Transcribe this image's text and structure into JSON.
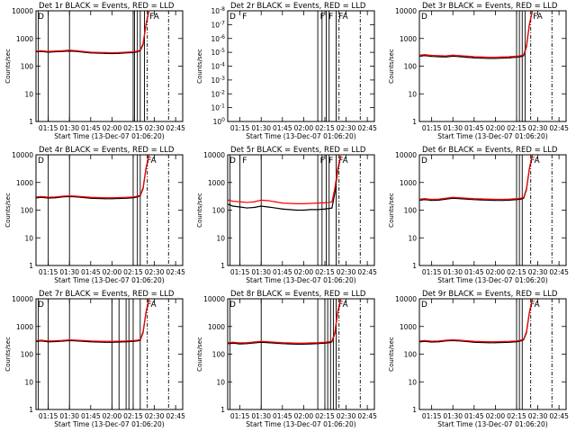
{
  "chart_data": [
    {
      "type": "line",
      "title": "Det 1r BLACK = Events, RED = LLD",
      "xlabel": "Start Time (13-Dec-07 01:06:20)",
      "ylabel": "Counts/sec",
      "yscale": "log",
      "ylim": [
        1,
        10000
      ],
      "yticks": [
        "1",
        "10",
        "100",
        "1000",
        "10000"
      ],
      "xticks": [
        "01:15",
        "01:30",
        "01:45",
        "02:00",
        "02:15",
        "02:30",
        "02:45"
      ],
      "xlim": [
        "01:06:20",
        "02:50"
      ],
      "x": [
        "01:07",
        "01:10",
        "01:15",
        "01:20",
        "01:25",
        "01:30",
        "01:35",
        "01:40",
        "01:45",
        "01:50",
        "01:55",
        "02:00",
        "02:05",
        "02:10",
        "02:15",
        "02:18",
        "02:20",
        "02:22",
        "02:24",
        "02:26"
      ],
      "series": [
        {
          "name": "Events",
          "color": "#000000",
          "values": [
            330,
            340,
            320,
            330,
            340,
            350,
            340,
            320,
            300,
            295,
            290,
            285,
            290,
            300,
            310,
            330,
            360,
            600,
            3000,
            9000
          ]
        },
        {
          "name": "LLD",
          "color": "#ff0000",
          "values": [
            350,
            360,
            340,
            350,
            360,
            380,
            360,
            340,
            320,
            315,
            310,
            305,
            310,
            320,
            330,
            350,
            380,
            650,
            3200,
            9500
          ]
        }
      ],
      "vlines": [
        "01:08",
        "01:15",
        "01:30",
        "02:15",
        "02:16",
        "02:18",
        "02:20",
        "02:23"
      ],
      "dashlines": [
        "02:25",
        "02:40"
      ],
      "flags": [
        {
          "x": "01:07",
          "text": "D"
        },
        {
          "x": "02:26",
          "text": "FA"
        }
      ]
    },
    {
      "type": "line",
      "title": "Det 2r BLACK = Events, RED = LLD",
      "xlabel": "Start Time (13-Dec-07 01:06:20)",
      "ylabel": "Counts/sec",
      "yscale": "log",
      "ylim": [
        1,
        1e-08
      ],
      "yticks": [
        "10^0",
        "10^-1",
        "10^-2",
        "10^-3",
        "10^-4",
        "10^-5",
        "10^-6",
        "10^-7",
        "10^-8"
      ],
      "xticks": [
        "01:15",
        "01:30",
        "01:45",
        "02:00",
        "02:15",
        "02:30",
        "02:45"
      ],
      "xlim": [
        "01:06:20",
        "02:50"
      ],
      "x": [],
      "series": [],
      "vlines": [
        "02:10",
        "02:13",
        "02:16",
        "02:18",
        "02:23"
      ],
      "dashlines": [
        "02:25",
        "02:40"
      ],
      "flags": [
        {
          "x": "01:07",
          "text": "D"
        },
        {
          "x": "01:16",
          "text": "F"
        },
        {
          "x": "02:11",
          "text": "F"
        },
        {
          "x": "02:17",
          "text": "F"
        },
        {
          "x": "02:24",
          "text": "FA"
        }
      ]
    },
    {
      "type": "line",
      "title": "Det 3r BLACK = Events, RED = LLD",
      "xlabel": "Start Time (13-Dec-07 01:06:20)",
      "ylabel": "Counts/sec",
      "yscale": "log",
      "ylim": [
        1,
        10000
      ],
      "yticks": [
        "1",
        "10",
        "100",
        "1000",
        "10000"
      ],
      "xticks": [
        "01:15",
        "01:30",
        "01:45",
        "02:00",
        "02:15",
        "02:30",
        "02:45"
      ],
      "xlim": [
        "01:06:20",
        "02:50"
      ],
      "x": [
        "01:07",
        "01:10",
        "01:15",
        "01:20",
        "01:25",
        "01:30",
        "01:35",
        "01:40",
        "01:45",
        "01:50",
        "01:55",
        "02:00",
        "02:05",
        "02:10",
        "02:15",
        "02:18",
        "02:20",
        "02:22",
        "02:24",
        "02:26"
      ],
      "series": [
        {
          "name": "Events",
          "color": "#000000",
          "values": [
            230,
            240,
            225,
            220,
            215,
            230,
            220,
            210,
            200,
            195,
            190,
            190,
            195,
            200,
            210,
            220,
            240,
            500,
            3000,
            9000
          ]
        },
        {
          "name": "LLD",
          "color": "#ff0000",
          "values": [
            250,
            260,
            245,
            240,
            235,
            250,
            240,
            230,
            220,
            215,
            210,
            210,
            215,
            220,
            230,
            240,
            260,
            550,
            3200,
            9500
          ]
        }
      ],
      "vlines": [
        "02:15",
        "02:17",
        "02:19",
        "02:21"
      ],
      "dashlines": [
        "02:25",
        "02:40"
      ],
      "flags": [
        {
          "x": "01:07",
          "text": "D"
        },
        {
          "x": "02:26",
          "text": "FA"
        }
      ]
    },
    {
      "type": "line",
      "title": "Det 4r BLACK = Events, RED = LLD",
      "xlabel": "Start Time (13-Dec-07 01:06:20)",
      "ylabel": "Counts/sec",
      "yscale": "log",
      "ylim": [
        1,
        10000
      ],
      "yticks": [
        "1",
        "10",
        "100",
        "1000",
        "10000"
      ],
      "xticks": [
        "01:15",
        "01:30",
        "01:45",
        "02:00",
        "02:15",
        "02:30",
        "02:45"
      ],
      "xlim": [
        "01:06:20",
        "02:50"
      ],
      "x": [
        "01:07",
        "01:10",
        "01:15",
        "01:20",
        "01:25",
        "01:30",
        "01:35",
        "01:40",
        "01:45",
        "01:50",
        "01:55",
        "02:00",
        "02:05",
        "02:10",
        "02:15",
        "02:18",
        "02:20",
        "02:22",
        "02:24",
        "02:26"
      ],
      "series": [
        {
          "name": "Events",
          "color": "#000000",
          "values": [
            280,
            290,
            275,
            280,
            300,
            310,
            300,
            285,
            270,
            265,
            260,
            260,
            265,
            270,
            280,
            300,
            330,
            600,
            3000,
            9000
          ]
        },
        {
          "name": "LLD",
          "color": "#ff0000",
          "values": [
            300,
            310,
            295,
            300,
            320,
            330,
            320,
            305,
            290,
            285,
            280,
            280,
            285,
            290,
            300,
            320,
            350,
            650,
            3200,
            9500
          ]
        }
      ],
      "vlines": [
        "01:15",
        "01:30",
        "02:15",
        "02:18",
        "02:20"
      ],
      "dashlines": [
        "02:25",
        "02:40"
      ],
      "flags": [
        {
          "x": "01:07",
          "text": "D"
        },
        {
          "x": "02:24",
          "text": "FA"
        }
      ]
    },
    {
      "type": "line",
      "title": "Det 5r BLACK = Events, RED = LLD",
      "xlabel": "Start Time (13-Dec-07 01:06:20)",
      "ylabel": "Counts/sec",
      "yscale": "log",
      "ylim": [
        1,
        10000
      ],
      "yticks": [
        "1",
        "10",
        "100",
        "1000",
        "10000"
      ],
      "xticks": [
        "01:15",
        "01:30",
        "01:45",
        "02:00",
        "02:15",
        "02:30",
        "02:45"
      ],
      "xlim": [
        "01:06:20",
        "02:50"
      ],
      "x": [
        "01:07",
        "01:10",
        "01:15",
        "01:20",
        "01:25",
        "01:30",
        "01:35",
        "01:40",
        "01:45",
        "01:50",
        "01:55",
        "02:00",
        "02:05",
        "02:10",
        "02:15",
        "02:18",
        "02:20",
        "02:22",
        "02:24",
        "02:26"
      ],
      "series": [
        {
          "name": "Events",
          "color": "#000000",
          "values": [
            160,
            140,
            130,
            120,
            125,
            140,
            130,
            120,
            110,
            105,
            100,
            100,
            105,
            105,
            110,
            115,
            120,
            400,
            2500,
            8000
          ]
        },
        {
          "name": "LLD",
          "color": "#ff0000",
          "values": [
            230,
            210,
            200,
            190,
            200,
            230,
            220,
            200,
            180,
            175,
            170,
            170,
            175,
            180,
            185,
            190,
            200,
            600,
            3000,
            9000
          ]
        }
      ],
      "vlines": [
        "01:08",
        "01:15",
        "01:30",
        "02:10",
        "02:13",
        "02:16",
        "02:18",
        "02:23"
      ],
      "dashlines": [
        "02:25",
        "02:40"
      ],
      "flags": [
        {
          "x": "01:07",
          "text": "D"
        },
        {
          "x": "01:16",
          "text": "F"
        },
        {
          "x": "02:11",
          "text": "F"
        },
        {
          "x": "02:17",
          "text": "F"
        },
        {
          "x": "02:24",
          "text": "FA"
        }
      ]
    },
    {
      "type": "line",
      "title": "Det 6r BLACK = Events, RED = LLD",
      "xlabel": "Start Time (13-Dec-07 01:06:20)",
      "ylabel": "Counts/sec",
      "yscale": "log",
      "ylim": [
        1,
        10000
      ],
      "yticks": [
        "1",
        "10",
        "100",
        "1000",
        "10000"
      ],
      "xticks": [
        "01:15",
        "01:30",
        "01:45",
        "02:00",
        "02:15",
        "02:30",
        "02:45"
      ],
      "xlim": [
        "01:06:20",
        "02:50"
      ],
      "x": [
        "01:07",
        "01:10",
        "01:15",
        "01:20",
        "01:25",
        "01:30",
        "01:35",
        "01:40",
        "01:45",
        "01:50",
        "01:55",
        "02:00",
        "02:05",
        "02:10",
        "02:15",
        "02:18",
        "02:20",
        "02:22",
        "02:24",
        "02:26"
      ],
      "series": [
        {
          "name": "Events",
          "color": "#000000",
          "values": [
            230,
            240,
            225,
            230,
            250,
            270,
            260,
            250,
            240,
            235,
            230,
            225,
            225,
            230,
            240,
            250,
            270,
            550,
            3000,
            9000
          ]
        },
        {
          "name": "LLD",
          "color": "#ff0000",
          "values": [
            250,
            260,
            245,
            250,
            270,
            290,
            280,
            270,
            260,
            255,
            250,
            245,
            245,
            250,
            260,
            270,
            290,
            600,
            3200,
            9500
          ]
        }
      ],
      "vlines": [
        "02:15",
        "02:17",
        "02:19"
      ],
      "dashlines": [
        "02:25",
        "02:40"
      ],
      "flags": [
        {
          "x": "01:07",
          "text": "D"
        },
        {
          "x": "02:24",
          "text": "FA"
        }
      ]
    },
    {
      "type": "line",
      "title": "Det 7r BLACK = Events, RED = LLD",
      "xlabel": "Start Time (13-Dec-07 01:06:20)",
      "ylabel": "Counts/sec",
      "yscale": "log",
      "ylim": [
        1,
        10000
      ],
      "yticks": [
        "1",
        "10",
        "100",
        "1000",
        "10000"
      ],
      "xticks": [
        "01:15",
        "01:30",
        "01:45",
        "02:00",
        "02:15",
        "02:30",
        "02:45"
      ],
      "xlim": [
        "01:06:20",
        "02:50"
      ],
      "x": [
        "01:07",
        "01:10",
        "01:15",
        "01:20",
        "01:25",
        "01:30",
        "01:35",
        "01:40",
        "01:45",
        "01:50",
        "01:55",
        "02:00",
        "02:05",
        "02:10",
        "02:15",
        "02:18",
        "02:20",
        "02:22",
        "02:24",
        "02:26"
      ],
      "series": [
        {
          "name": "Events",
          "color": "#000000",
          "values": [
            290,
            300,
            280,
            285,
            295,
            310,
            300,
            290,
            280,
            275,
            270,
            270,
            275,
            280,
            290,
            300,
            320,
            600,
            3000,
            9000
          ]
        },
        {
          "name": "LLD",
          "color": "#ff0000",
          "values": [
            310,
            320,
            300,
            305,
            315,
            330,
            320,
            310,
            300,
            295,
            290,
            290,
            295,
            300,
            310,
            320,
            340,
            650,
            3200,
            9500
          ]
        }
      ],
      "vlines": [
        "01:08",
        "01:15",
        "01:30",
        "02:00",
        "02:05",
        "02:10",
        "02:12",
        "02:15",
        "02:20"
      ],
      "dashlines": [
        "02:25",
        "02:40"
      ],
      "flags": [
        {
          "x": "01:07",
          "text": "D"
        },
        {
          "x": "02:24",
          "text": "FA"
        }
      ]
    },
    {
      "type": "line",
      "title": "Det 8r BLACK = Events, RED = LLD",
      "xlabel": "Start Time (13-Dec-07 01:06:20)",
      "ylabel": "Counts/sec",
      "yscale": "log",
      "ylim": [
        1,
        10000
      ],
      "yticks": [
        "1",
        "10",
        "100",
        "1000",
        "10000"
      ],
      "xticks": [
        "01:15",
        "01:30",
        "01:45",
        "02:00",
        "02:15",
        "02:30",
        "02:45"
      ],
      "xlim": [
        "01:06:20",
        "02:50"
      ],
      "x": [
        "01:07",
        "01:10",
        "01:15",
        "01:20",
        "01:25",
        "01:30",
        "01:35",
        "01:40",
        "01:45",
        "01:50",
        "01:55",
        "02:00",
        "02:05",
        "02:10",
        "02:15",
        "02:18",
        "02:20",
        "02:22",
        "02:24",
        "02:26"
      ],
      "series": [
        {
          "name": "Events",
          "color": "#000000",
          "values": [
            240,
            250,
            235,
            240,
            255,
            270,
            260,
            250,
            240,
            235,
            230,
            230,
            235,
            240,
            250,
            260,
            280,
            550,
            3000,
            9000
          ]
        },
        {
          "name": "LLD",
          "color": "#ff0000",
          "values": [
            260,
            270,
            255,
            260,
            275,
            290,
            280,
            270,
            260,
            255,
            250,
            250,
            255,
            260,
            270,
            280,
            300,
            600,
            3200,
            9500
          ]
        }
      ],
      "vlines": [
        "01:08",
        "01:30",
        "02:10",
        "02:15",
        "02:17",
        "02:19",
        "02:21",
        "02:23"
      ],
      "dashlines": [
        "02:25",
        "02:40"
      ],
      "flags": [
        {
          "x": "01:07",
          "text": "D"
        },
        {
          "x": "02:24",
          "text": "FA"
        }
      ]
    },
    {
      "type": "line",
      "title": "Det 9r BLACK = Events, RED = LLD",
      "xlabel": "Start Time (13-Dec-07 01:06:20)",
      "ylabel": "Counts/sec",
      "yscale": "log",
      "ylim": [
        1,
        10000
      ],
      "yticks": [
        "1",
        "10",
        "100",
        "1000",
        "10000"
      ],
      "xticks": [
        "01:15",
        "01:30",
        "01:45",
        "02:00",
        "02:15",
        "02:30",
        "02:45"
      ],
      "xlim": [
        "01:06:20",
        "02:50"
      ],
      "x": [
        "01:07",
        "01:10",
        "01:15",
        "01:20",
        "01:25",
        "01:30",
        "01:35",
        "01:40",
        "01:45",
        "01:50",
        "01:55",
        "02:00",
        "02:05",
        "02:10",
        "02:15",
        "02:18",
        "02:20",
        "02:22",
        "02:24",
        "02:26"
      ],
      "series": [
        {
          "name": "Events",
          "color": "#000000",
          "values": [
            280,
            290,
            275,
            280,
            300,
            310,
            300,
            285,
            270,
            265,
            260,
            260,
            265,
            270,
            280,
            300,
            330,
            600,
            3000,
            9000
          ]
        },
        {
          "name": "LLD",
          "color": "#ff0000",
          "values": [
            300,
            310,
            295,
            300,
            320,
            330,
            320,
            305,
            290,
            285,
            280,
            280,
            285,
            290,
            300,
            320,
            350,
            650,
            3200,
            9500
          ]
        }
      ],
      "vlines": [
        "02:15",
        "02:17",
        "02:19"
      ],
      "dashlines": [
        "02:25",
        "02:40"
      ],
      "flags": [
        {
          "x": "01:07",
          "text": "D"
        },
        {
          "x": "02:24",
          "text": "FA"
        }
      ]
    }
  ]
}
